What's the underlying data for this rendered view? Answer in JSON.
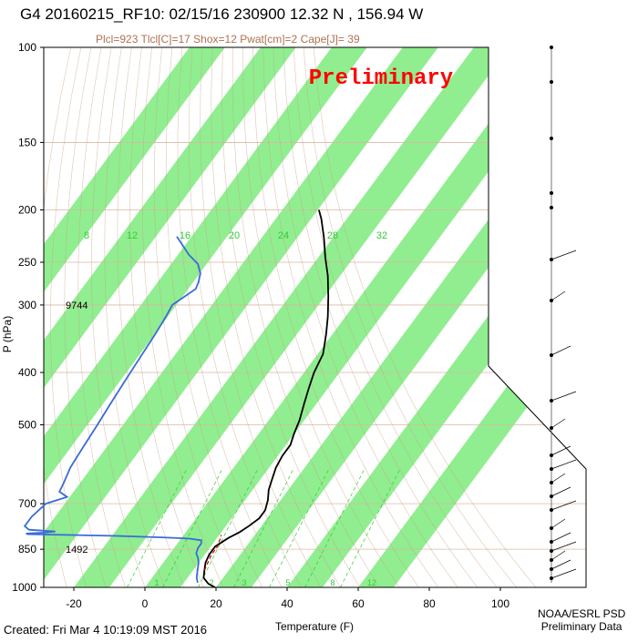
{
  "header": {
    "title": "G4 20160215_RF10: 02/15/16 230900  12.32 N , 156.94 W",
    "indices": "Plcl=923 Tlcl[C]=17 Shox=12 Pwat[cm]=2 Cape[J]= 39"
  },
  "footer": {
    "created": "Created: Fri Mar  4 10:19:09 MST 2016",
    "org_line1": "NOAA/ESRL PSD",
    "org_line2": "Preliminary Data"
  },
  "watermark": "Preliminary",
  "colors": {
    "band": "#90ee90",
    "temperature": "#000000",
    "dewpoint": "#3a6bd8",
    "parcel": "#cc0000",
    "isobar": "#d8b8a0",
    "adiabat": "#c8a080",
    "mixing_ratio": "#33cc33",
    "index_text": "#b07050",
    "watermark": "#ff0000"
  },
  "chart_data": {
    "type": "line",
    "title": "G4 20160215_RF10: 02/15/16 230900  12.32 N , 156.94 W",
    "xlabel": "Temperature (F)",
    "ylabel": "P (hPa)",
    "x_scale": "skewed",
    "y_scale": "log",
    "xlim": [
      -27,
      110
    ],
    "ylim": [
      1000,
      100
    ],
    "x_ticks": [
      "-20",
      "0",
      "20",
      "40",
      "60",
      "80",
      "100"
    ],
    "y_ticks": [
      "100",
      "150",
      "200",
      "250",
      "300",
      "400",
      "500",
      "700",
      "850",
      "1000"
    ],
    "mixing_ratio_labels_top": [
      "8",
      "12",
      "16",
      "20",
      "24",
      "28",
      "32"
    ],
    "mixing_ratio_labels_bottom": [
      "1",
      "2",
      "3",
      "5",
      "8",
      "12"
    ],
    "height_annotations": [
      {
        "text": "9744",
        "p": 300
      },
      {
        "text": "1492",
        "p": 850
      }
    ],
    "grid": true,
    "series": [
      {
        "name": "temperature",
        "points": [
          {
            "p": 1000,
            "x": 79
          },
          {
            "p": 985,
            "x": 75
          },
          {
            "p": 960,
            "x": 71
          },
          {
            "p": 930,
            "x": 69
          },
          {
            "p": 900,
            "x": 67
          },
          {
            "p": 870,
            "x": 66
          },
          {
            "p": 840,
            "x": 66
          },
          {
            "p": 810,
            "x": 69
          },
          {
            "p": 790,
            "x": 72
          },
          {
            "p": 770,
            "x": 74
          },
          {
            "p": 745,
            "x": 76
          },
          {
            "p": 720,
            "x": 76
          },
          {
            "p": 690,
            "x": 74
          },
          {
            "p": 660,
            "x": 71
          },
          {
            "p": 630,
            "x": 69
          },
          {
            "p": 600,
            "x": 67
          },
          {
            "p": 570,
            "x": 66
          },
          {
            "p": 545,
            "x": 66
          },
          {
            "p": 520,
            "x": 64
          },
          {
            "p": 490,
            "x": 62
          },
          {
            "p": 460,
            "x": 59
          },
          {
            "p": 430,
            "x": 56
          },
          {
            "p": 400,
            "x": 53
          },
          {
            "p": 370,
            "x": 51
          },
          {
            "p": 340,
            "x": 46
          },
          {
            "p": 315,
            "x": 41
          },
          {
            "p": 290,
            "x": 35
          },
          {
            "p": 265,
            "x": 28
          },
          {
            "p": 245,
            "x": 21
          },
          {
            "p": 225,
            "x": 14
          },
          {
            "p": 208,
            "x": 7
          },
          {
            "p": 200,
            "x": 3
          }
        ]
      },
      {
        "name": "dewpoint",
        "points": [
          {
            "p": 980,
            "x": 70
          },
          {
            "p": 960,
            "x": 68
          },
          {
            "p": 930,
            "x": 66
          },
          {
            "p": 900,
            "x": 64
          },
          {
            "p": 880,
            "x": 62
          },
          {
            "p": 865,
            "x": 60
          },
          {
            "p": 845,
            "x": 59
          },
          {
            "p": 830,
            "x": 59
          },
          {
            "p": 818,
            "x": 58
          },
          {
            "p": 812,
            "x": 52
          },
          {
            "p": 808,
            "x": 40
          },
          {
            "p": 803,
            "x": 20
          },
          {
            "p": 800,
            "x": 0
          },
          {
            "p": 797,
            "x": -19
          },
          {
            "p": 795,
            "x": -20
          },
          {
            "p": 792,
            "x": -12
          },
          {
            "p": 788,
            "x": -8
          },
          {
            "p": 782,
            "x": -20
          },
          {
            "p": 770,
            "x": -23
          },
          {
            "p": 740,
            "x": -23
          },
          {
            "p": 700,
            "x": -21
          },
          {
            "p": 680,
            "x": -14
          },
          {
            "p": 665,
            "x": -19
          },
          {
            "p": 640,
            "x": -20
          },
          {
            "p": 600,
            "x": -22
          },
          {
            "p": 550,
            "x": -23
          },
          {
            "p": 500,
            "x": -24
          },
          {
            "p": 460,
            "x": -25
          },
          {
            "p": 420,
            "x": -26
          },
          {
            "p": 380,
            "x": -27
          },
          {
            "p": 340,
            "x": -28
          },
          {
            "p": 315,
            "x": -29
          },
          {
            "p": 300,
            "x": -30
          },
          {
            "p": 288,
            "x": -27
          },
          {
            "p": 280,
            "x": -25
          },
          {
            "p": 272,
            "x": -26
          },
          {
            "p": 262,
            "x": -28
          },
          {
            "p": 252,
            "x": -32
          },
          {
            "p": 242,
            "x": -39
          },
          {
            "p": 232,
            "x": -45
          },
          {
            "p": 224,
            "x": -50
          }
        ]
      },
      {
        "name": "parcel",
        "points": [
          {
            "p": 930,
            "x": 69
          },
          {
            "p": 900,
            "x": 68
          },
          {
            "p": 870,
            "x": 67
          },
          {
            "p": 840,
            "x": 67
          },
          {
            "p": 820,
            "x": 66
          },
          {
            "p": 800,
            "x": 65
          }
        ]
      }
    ]
  }
}
